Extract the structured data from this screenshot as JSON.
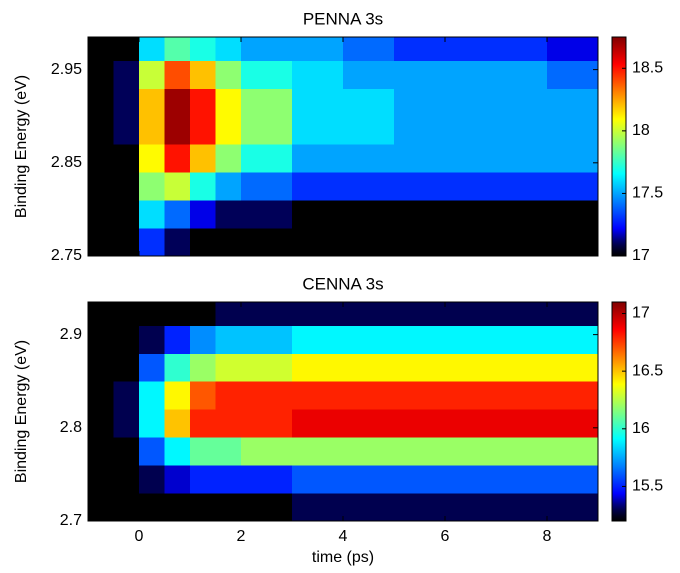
{
  "chart_data": [
    {
      "type": "heatmap",
      "title": "PENNA 3s",
      "ylabel": "Binding Energy (eV)",
      "colormap": "jet",
      "xlim": [
        -1,
        9
      ],
      "ylim": [
        2.75,
        2.985
      ],
      "yticks": [
        2.75,
        2.85,
        2.95
      ],
      "clim": [
        17,
        18.75
      ],
      "cticks": [
        17,
        17.5,
        18,
        18.5
      ],
      "x_edges": [
        -1,
        -0.5,
        0,
        0.5,
        1,
        1.5,
        2,
        3,
        4,
        5,
        6,
        7,
        8,
        9
      ],
      "y_edges": [
        2.75,
        2.78,
        2.81,
        2.84,
        2.87,
        2.9,
        2.93,
        2.96,
        2.985
      ],
      "z": [
        [
          17,
          17,
          17.3,
          17.1,
          17,
          17,
          17,
          17,
          17,
          17,
          17,
          17,
          17
        ],
        [
          17,
          17,
          17.6,
          17.4,
          17.2,
          17.1,
          17.1,
          17,
          17,
          17,
          17,
          17,
          17
        ],
        [
          17,
          17,
          17.9,
          18.0,
          17.7,
          17.5,
          17.4,
          17.3,
          17.3,
          17.3,
          17.3,
          17.3,
          17.3
        ],
        [
          17,
          17,
          18.1,
          18.5,
          18.2,
          17.9,
          17.7,
          17.5,
          17.5,
          17.5,
          17.5,
          17.5,
          17.5
        ],
        [
          17,
          17.1,
          18.2,
          18.7,
          18.5,
          18.1,
          17.9,
          17.6,
          17.6,
          17.5,
          17.5,
          17.5,
          17.5
        ],
        [
          17,
          17.1,
          18.2,
          18.7,
          18.5,
          18.1,
          17.9,
          17.6,
          17.6,
          17.5,
          17.5,
          17.5,
          17.5
        ],
        [
          17,
          17.1,
          18.0,
          18.4,
          18.2,
          17.9,
          17.7,
          17.6,
          17.5,
          17.5,
          17.5,
          17.5,
          17.4
        ],
        [
          17,
          17,
          17.6,
          17.8,
          17.7,
          17.6,
          17.5,
          17.5,
          17.4,
          17.3,
          17.3,
          17.3,
          17.2
        ]
      ]
    },
    {
      "type": "heatmap",
      "title": "CENNA 3s",
      "ylabel": "Binding Energy (eV)",
      "xlabel": "time (ps)",
      "colormap": "jet",
      "xlim": [
        -1,
        9
      ],
      "ylim": [
        2.7,
        2.935
      ],
      "xticks": [
        0,
        2,
        4,
        6,
        8
      ],
      "yticks": [
        2.7,
        2.8,
        2.9
      ],
      "clim": [
        15.2,
        17.1
      ],
      "cticks": [
        15.5,
        16,
        16.5,
        17
      ],
      "x_edges": [
        -1,
        -0.5,
        0,
        0.5,
        1,
        1.5,
        2,
        3,
        4,
        5,
        6,
        7,
        8,
        9
      ],
      "y_edges": [
        2.7,
        2.73,
        2.76,
        2.79,
        2.82,
        2.85,
        2.88,
        2.91,
        2.935
      ],
      "z": [
        [
          15.2,
          15.2,
          15.2,
          15.2,
          15.2,
          15.2,
          15.2,
          15.3,
          15.3,
          15.3,
          15.3,
          15.3,
          15.3
        ],
        [
          15.2,
          15.2,
          15.3,
          15.4,
          15.5,
          15.5,
          15.5,
          15.6,
          15.6,
          15.6,
          15.6,
          15.6,
          15.6
        ],
        [
          15.2,
          15.2,
          15.6,
          15.9,
          16.1,
          16.1,
          16.2,
          16.2,
          16.2,
          16.2,
          16.2,
          16.2,
          16.2
        ],
        [
          15.2,
          15.3,
          15.9,
          16.5,
          16.8,
          16.8,
          16.8,
          16.9,
          16.9,
          16.9,
          16.9,
          16.9,
          16.9
        ],
        [
          15.2,
          15.3,
          15.9,
          16.4,
          16.7,
          16.8,
          16.8,
          16.8,
          16.8,
          16.8,
          16.8,
          16.8,
          16.8
        ],
        [
          15.2,
          15.2,
          15.6,
          16.0,
          16.2,
          16.3,
          16.3,
          16.4,
          16.4,
          16.4,
          16.4,
          16.4,
          16.4
        ],
        [
          15.2,
          15.2,
          15.3,
          15.5,
          15.7,
          15.8,
          15.8,
          15.9,
          15.9,
          15.9,
          15.9,
          15.9,
          15.9
        ],
        [
          15.2,
          15.2,
          15.2,
          15.2,
          15.2,
          15.3,
          15.3,
          15.3,
          15.3,
          15.3,
          15.3,
          15.3,
          15.3
        ]
      ]
    }
  ]
}
